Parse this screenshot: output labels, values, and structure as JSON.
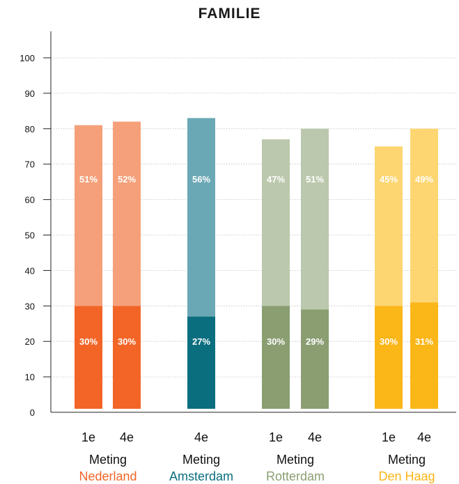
{
  "chart_data": {
    "type": "bar",
    "title": "FAMILIE",
    "ylim": [
      0,
      100
    ],
    "yticks": [
      0,
      10,
      20,
      30,
      40,
      50,
      60,
      70,
      80,
      90,
      100
    ],
    "grid": true,
    "groups": [
      {
        "name": "Nederland",
        "color_dark": "#F26527",
        "color_light": "#F5A07A",
        "bars": [
          {
            "label": "1e",
            "bottom": 30,
            "top": 51,
            "bottom_label": "30%",
            "top_label": "51%"
          },
          {
            "label": "4e",
            "bottom": 30,
            "top": 52,
            "bottom_label": "30%",
            "top_label": "52%"
          }
        ]
      },
      {
        "name": "Amsterdam",
        "color_dark": "#0A6E7E",
        "color_light": "#6BA8B5",
        "bars": [
          {
            "label": "4e",
            "bottom": 27,
            "top": 56,
            "bottom_label": "27%",
            "top_label": "56%"
          }
        ]
      },
      {
        "name": "Rotterdam",
        "color_dark": "#8A9E72",
        "color_light": "#BCC8AD",
        "bars": [
          {
            "label": "1e",
            "bottom": 30,
            "top": 47,
            "bottom_label": "30%",
            "top_label": "47%"
          },
          {
            "label": "4e",
            "bottom": 29,
            "top": 51,
            "bottom_label": "29%",
            "top_label": "51%"
          }
        ]
      },
      {
        "name": "Den Haag",
        "color_dark": "#FBB617",
        "color_light": "#FDD672",
        "bars": [
          {
            "label": "1e",
            "bottom": 30,
            "top": 45,
            "bottom_label": "30%",
            "top_label": "45%"
          },
          {
            "label": "4e",
            "bottom": 31,
            "top": 49,
            "bottom_label": "31%",
            "top_label": "49%"
          }
        ]
      }
    ],
    "meting_label": "Meting"
  }
}
